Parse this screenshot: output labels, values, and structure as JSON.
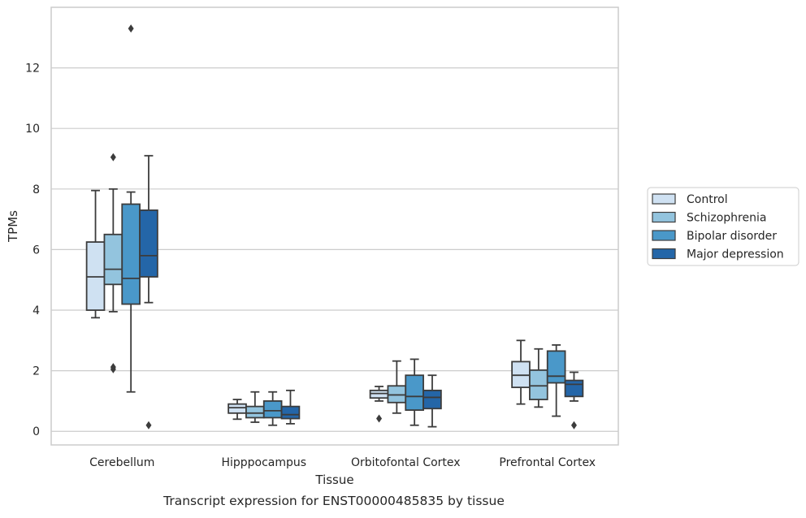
{
  "chart_data": {
    "type": "box",
    "xlabel": "Tissue",
    "ylabel": "TPMs",
    "caption": "Transcript expression for ENST00000485835 by tissue",
    "ylim": [
      -0.45,
      14.0
    ],
    "yticks": [
      0,
      2,
      4,
      6,
      8,
      10,
      12
    ],
    "grid": "horizontal",
    "legend_position": "right",
    "categories": [
      "Cerebellum",
      "Hipppocampus",
      "Orbitofontal Cortex",
      "Prefrontal Cortex"
    ],
    "series": [
      {
        "name": "Control",
        "color": "#cfe1f2",
        "boxes": [
          {
            "whislo": 3.75,
            "q1": 4.0,
            "med": 5.1,
            "q3": 6.25,
            "whishi": 7.95,
            "fliers": []
          },
          {
            "whislo": 0.4,
            "q1": 0.6,
            "med": 0.78,
            "q3": 0.9,
            "whishi": 1.05,
            "fliers": []
          },
          {
            "whislo": 1.0,
            "q1": 1.1,
            "med": 1.25,
            "q3": 1.35,
            "whishi": 1.48,
            "fliers": [
              0.42
            ]
          },
          {
            "whislo": 0.9,
            "q1": 1.45,
            "med": 1.85,
            "q3": 2.3,
            "whishi": 3.0,
            "fliers": []
          }
        ]
      },
      {
        "name": "Schizophrenia",
        "color": "#93c4de",
        "boxes": [
          {
            "whislo": 3.95,
            "q1": 4.85,
            "med": 5.35,
            "q3": 6.5,
            "whishi": 8.0,
            "fliers": [
              9.05,
              2.05,
              2.12
            ]
          },
          {
            "whislo": 0.3,
            "q1": 0.45,
            "med": 0.6,
            "q3": 0.82,
            "whishi": 1.3,
            "fliers": []
          },
          {
            "whislo": 0.6,
            "q1": 0.95,
            "med": 1.2,
            "q3": 1.5,
            "whishi": 2.32,
            "fliers": []
          },
          {
            "whislo": 0.8,
            "q1": 1.05,
            "med": 1.5,
            "q3": 2.02,
            "whishi": 2.72,
            "fliers": []
          }
        ]
      },
      {
        "name": "Bipolar disorder",
        "color": "#4a98c9",
        "boxes": [
          {
            "whislo": 1.3,
            "q1": 4.2,
            "med": 5.05,
            "q3": 7.5,
            "whishi": 7.9,
            "fliers": [
              13.3
            ]
          },
          {
            "whislo": 0.2,
            "q1": 0.45,
            "med": 0.68,
            "q3": 1.0,
            "whishi": 1.3,
            "fliers": []
          },
          {
            "whislo": 0.2,
            "q1": 0.7,
            "med": 1.15,
            "q3": 1.85,
            "whishi": 2.38,
            "fliers": []
          },
          {
            "whislo": 0.5,
            "q1": 1.6,
            "med": 1.82,
            "q3": 2.65,
            "whishi": 2.85,
            "fliers": []
          }
        ]
      },
      {
        "name": "Major depression",
        "color": "#2466a8",
        "boxes": [
          {
            "whislo": 4.25,
            "q1": 5.1,
            "med": 5.8,
            "q3": 7.3,
            "whishi": 9.1,
            "fliers": [
              0.2
            ]
          },
          {
            "whislo": 0.25,
            "q1": 0.42,
            "med": 0.55,
            "q3": 0.82,
            "whishi": 1.35,
            "fliers": []
          },
          {
            "whislo": 0.15,
            "q1": 0.75,
            "med": 1.12,
            "q3": 1.35,
            "whishi": 1.85,
            "fliers": []
          },
          {
            "whislo": 1.0,
            "q1": 1.15,
            "med": 1.55,
            "q3": 1.68,
            "whishi": 1.95,
            "fliers": [
              0.2
            ]
          }
        ]
      }
    ]
  }
}
